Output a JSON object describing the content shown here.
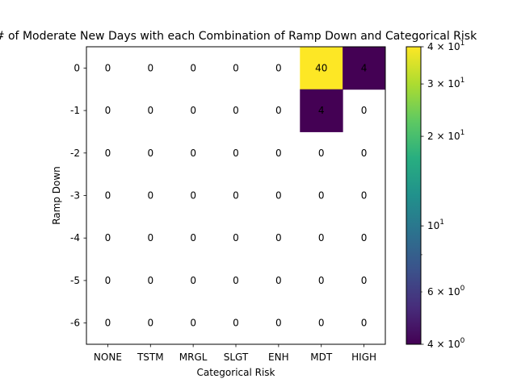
{
  "chart_data": {
    "type": "heatmap",
    "title": "# of Moderate New Days with each Combination of Ramp Down and Categorical Risk",
    "xlabel": "Categorical Risk",
    "ylabel": "Ramp Down",
    "x_categories": [
      "NONE",
      "TSTM",
      "MRGL",
      "SLGT",
      "ENH",
      "MDT",
      "HIGH"
    ],
    "y_categories": [
      "0",
      "-1",
      "-2",
      "-3",
      "-4",
      "-5",
      "-6"
    ],
    "values": [
      [
        0,
        0,
        0,
        0,
        0,
        40,
        4
      ],
      [
        0,
        0,
        0,
        0,
        0,
        4,
        0
      ],
      [
        0,
        0,
        0,
        0,
        0,
        0,
        0
      ],
      [
        0,
        0,
        0,
        0,
        0,
        0,
        0
      ],
      [
        0,
        0,
        0,
        0,
        0,
        0,
        0
      ],
      [
        0,
        0,
        0,
        0,
        0,
        0,
        0
      ],
      [
        0,
        0,
        0,
        0,
        0,
        0,
        0
      ]
    ],
    "zero_cells": "blank",
    "colormap": "viridis",
    "color_scale": "log",
    "zlim": [
      4,
      40
    ],
    "colorbar": {
      "major_ticks": [
        {
          "value": 4,
          "base": "4",
          "exp": "0"
        },
        {
          "value": 10,
          "base": "10",
          "exp": "1"
        },
        {
          "value": 20,
          "base": "2",
          "exp": "1"
        },
        {
          "value": 30,
          "base": "3",
          "exp": "1"
        },
        {
          "value": 40,
          "base": "4",
          "exp": "1"
        }
      ],
      "minor_ticks": [
        {
          "value": 6,
          "base": "6",
          "exp": "0"
        },
        {
          "value": 8,
          "base": null,
          "exp": null
        }
      ],
      "times": "×"
    }
  }
}
